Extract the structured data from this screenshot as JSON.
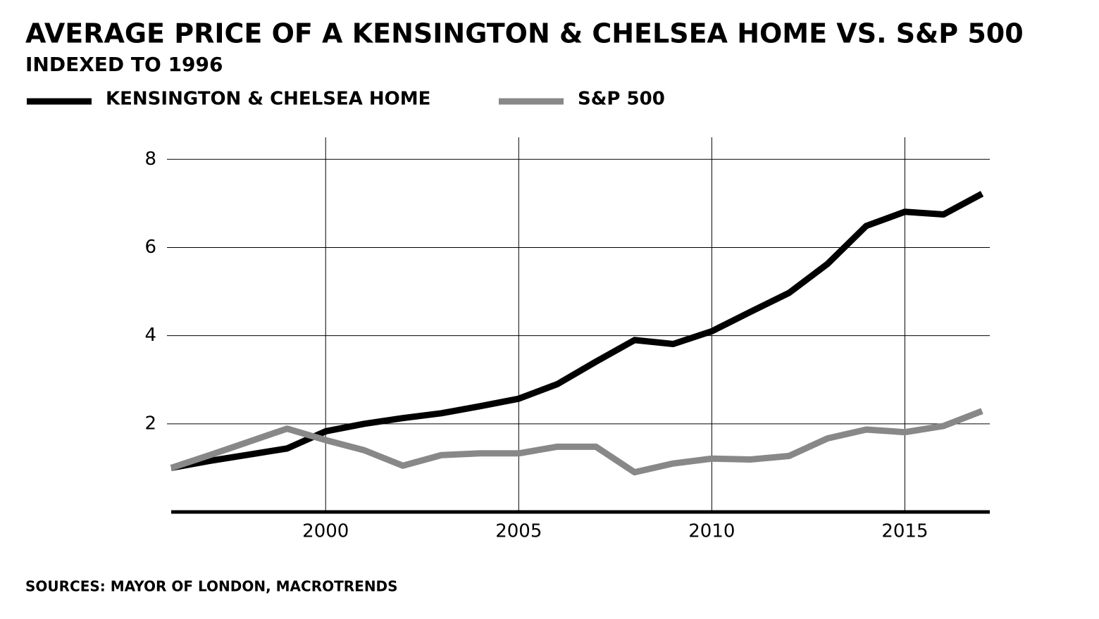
{
  "chart_data": {
    "type": "line",
    "title": "AVERAGE PRICE OF A KENSINGTON & CHELSEA HOME VS. S&P 500",
    "subtitle": "INDEXED TO 1996",
    "source": "SOURCES: MAYOR OF LONDON, MACROTRENDS",
    "x": [
      1996,
      1997,
      1998,
      1999,
      2000,
      2001,
      2002,
      2003,
      2004,
      2005,
      2006,
      2007,
      2008,
      2009,
      2010,
      2011,
      2012,
      2013,
      2014,
      2015,
      2016,
      2017
    ],
    "series": [
      {
        "name": "KENSINGTON & CHELSEA HOME",
        "color": "#000000",
        "values": [
          1.0,
          1.16,
          1.3,
          1.44,
          1.83,
          2.0,
          2.13,
          2.24,
          2.4,
          2.57,
          2.9,
          3.41,
          3.9,
          3.81,
          4.1,
          4.54,
          4.97,
          5.63,
          6.49,
          6.81,
          6.75,
          7.22
        ]
      },
      {
        "name": "S&P 500",
        "color": "#888888",
        "values": [
          1.0,
          1.29,
          1.59,
          1.89,
          1.63,
          1.4,
          1.05,
          1.29,
          1.33,
          1.33,
          1.48,
          1.48,
          0.9,
          1.1,
          1.21,
          1.19,
          1.27,
          1.67,
          1.87,
          1.81,
          1.95,
          2.29
        ]
      }
    ],
    "xlim": [
      1996,
      2017.2
    ],
    "xticks": [
      2000,
      2005,
      2010,
      2015
    ],
    "ylim": [
      0,
      8.5
    ],
    "yticks": [
      2,
      4,
      6,
      8
    ],
    "grid": true
  }
}
